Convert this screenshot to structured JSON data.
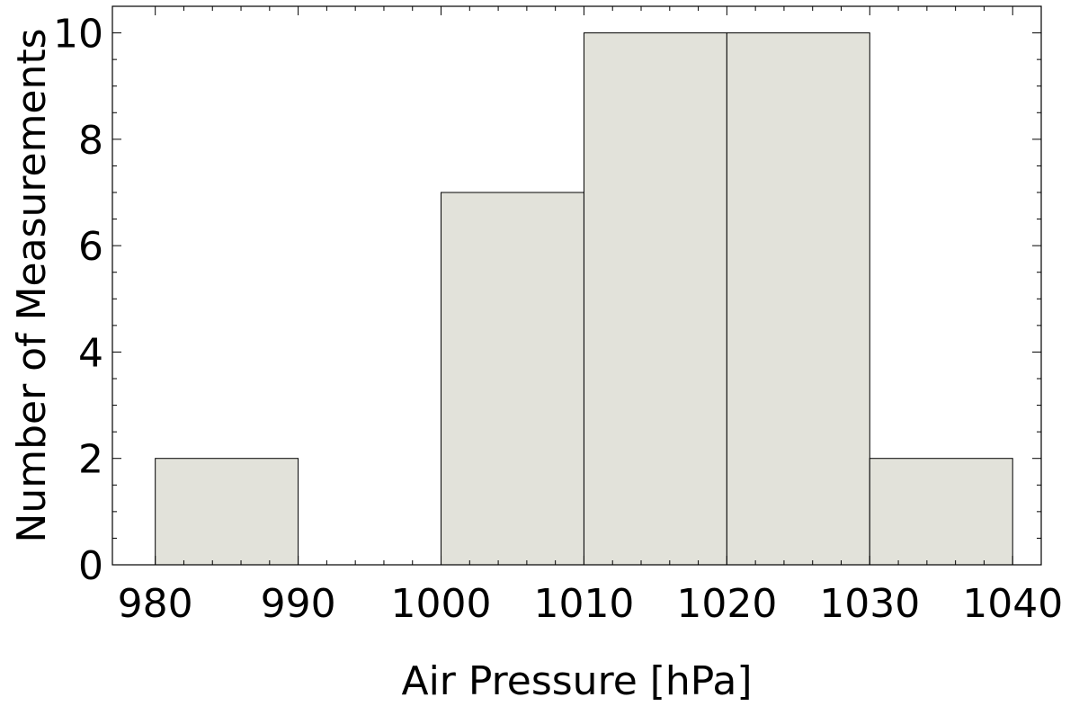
{
  "chart_data": {
    "type": "bar",
    "title": "",
    "xlabel": "Air Pressure [hPa]",
    "ylabel": "Number of Measurements",
    "bins": [
      {
        "x0": 980,
        "x1": 990,
        "count": 2
      },
      {
        "x0": 990,
        "x1": 1000,
        "count": 0
      },
      {
        "x0": 1000,
        "x1": 1010,
        "count": 7
      },
      {
        "x0": 1010,
        "x1": 1020,
        "count": 10
      },
      {
        "x0": 1020,
        "x1": 1030,
        "count": 10
      },
      {
        "x0": 1030,
        "x1": 1040,
        "count": 2
      }
    ],
    "xlim": [
      977,
      1042
    ],
    "ylim": [
      0,
      10.5
    ],
    "x_ticks": [
      980,
      990,
      1000,
      1010,
      1020,
      1030,
      1040
    ],
    "y_ticks": [
      0,
      2,
      4,
      6,
      8,
      10
    ],
    "x_ticks_minor": [
      982,
      984,
      986,
      988,
      992,
      994,
      996,
      998,
      1002,
      1004,
      1006,
      1008,
      1012,
      1014,
      1016,
      1018,
      1022,
      1024,
      1026,
      1028,
      1032,
      1034,
      1036,
      1038
    ],
    "y_ticks_minor": [
      0.5,
      1,
      1.5,
      2.5,
      3,
      3.5,
      4.5,
      5,
      5.5,
      6.5,
      7,
      7.5,
      8.5,
      9,
      9.5
    ],
    "grid": false,
    "legend": "none",
    "bar_color": "#e2e2da",
    "bar_edge_color": "#000000"
  }
}
